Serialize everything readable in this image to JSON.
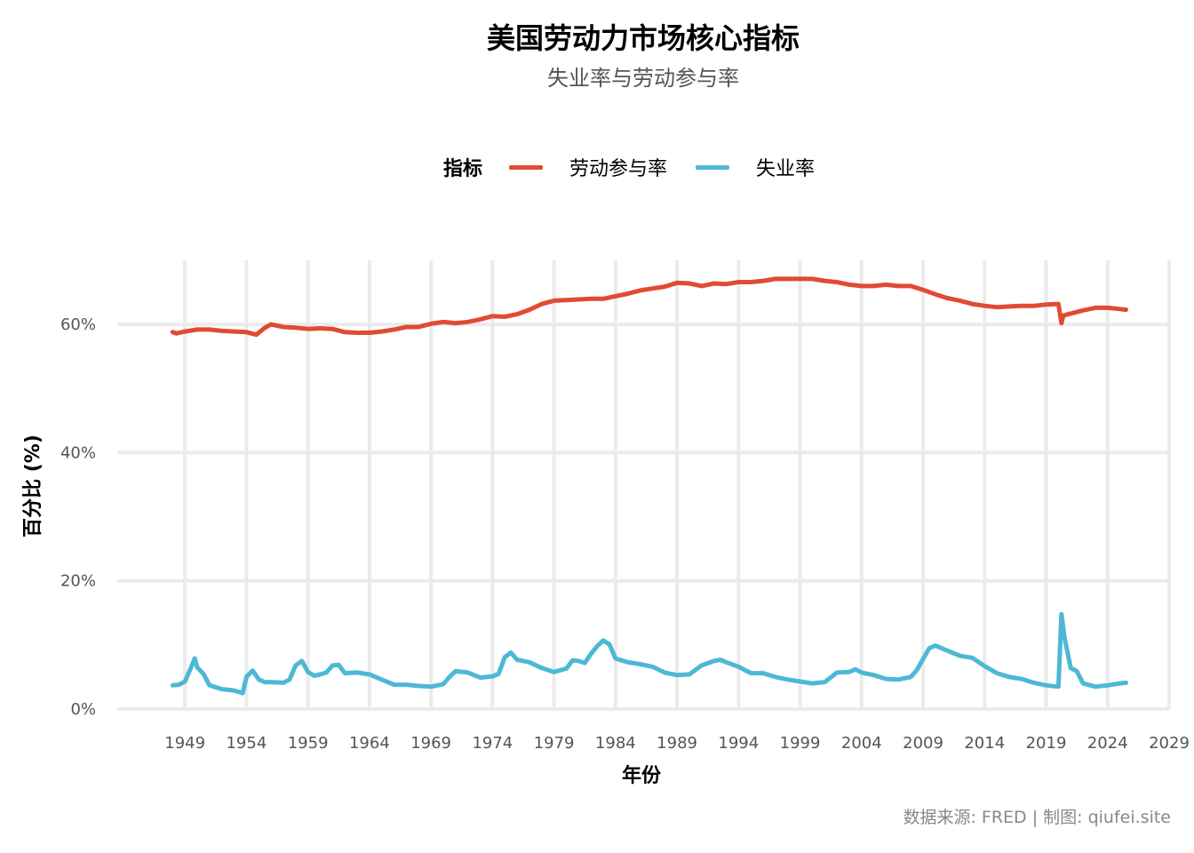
{
  "title": "美国劳动力市场核心指标",
  "subtitle": "失业率与劳动参与率",
  "caption": "数据来源: FRED | 制图: qiufei.site",
  "legend": {
    "title": "指标",
    "items": [
      {
        "label": "劳动参与率",
        "color": "#E24A33"
      },
      {
        "label": "失业率",
        "color": "#4DB8D5"
      }
    ]
  },
  "chart_data": {
    "type": "line",
    "title": "美国劳动力市场核心指标",
    "subtitle": "失业率与劳动参与率",
    "xlabel": "年份",
    "ylabel": "百分比 (%)",
    "xlim": [
      1943.5,
      2029
    ],
    "ylim": [
      0,
      70
    ],
    "x_ticks": [
      1949,
      1954,
      1959,
      1964,
      1969,
      1974,
      1979,
      1984,
      1989,
      1994,
      1999,
      2004,
      2009,
      2014,
      2019,
      2024,
      2029
    ],
    "x_tick_labels": [
      "1949",
      "1954",
      "1959",
      "1964",
      "1969",
      "1974",
      "1979",
      "1984",
      "1989",
      "1994",
      "1999",
      "2004",
      "2009",
      "2014",
      "2019",
      "2024",
      "2029"
    ],
    "y_ticks": [
      0,
      20,
      40,
      60
    ],
    "y_tick_labels": [
      "0%",
      "20%",
      "40%",
      "60%"
    ],
    "grid": true,
    "legend_position": "top",
    "series": [
      {
        "name": "劳动参与率",
        "color": "#E24A33",
        "x": [
          1948.0,
          1948.3,
          1949.0,
          1950.0,
          1951.0,
          1952.0,
          1953.0,
          1954.0,
          1954.8,
          1955.5,
          1956.0,
          1957.0,
          1958.0,
          1959.0,
          1960.0,
          1961.0,
          1962.0,
          1963.0,
          1964.0,
          1965.0,
          1966.0,
          1967.0,
          1968.0,
          1969.0,
          1970.0,
          1971.0,
          1972.0,
          1973.0,
          1974.0,
          1975.0,
          1976.0,
          1977.0,
          1978.0,
          1979.0,
          1980.0,
          1981.0,
          1982.0,
          1983.0,
          1984.0,
          1985.0,
          1986.0,
          1987.0,
          1988.0,
          1989.0,
          1990.0,
          1991.0,
          1992.0,
          1993.0,
          1994.0,
          1995.0,
          1996.0,
          1997.0,
          1998.0,
          1999.0,
          2000.0,
          2001.0,
          2002.0,
          2003.0,
          2004.0,
          2005.0,
          2006.0,
          2007.0,
          2008.0,
          2009.0,
          2010.0,
          2011.0,
          2012.0,
          2013.0,
          2014.0,
          2015.0,
          2016.0,
          2017.0,
          2018.0,
          2019.0,
          2020.0,
          2020.25,
          2020.4,
          2021.0,
          2022.0,
          2023.0,
          2024.0,
          2025.0,
          2025.5
        ],
        "y": [
          58.8,
          58.6,
          58.9,
          59.2,
          59.2,
          59.0,
          58.9,
          58.8,
          58.4,
          59.5,
          60.0,
          59.6,
          59.5,
          59.3,
          59.4,
          59.3,
          58.8,
          58.7,
          58.7,
          58.9,
          59.2,
          59.6,
          59.6,
          60.1,
          60.4,
          60.2,
          60.4,
          60.8,
          61.3,
          61.2,
          61.6,
          62.3,
          63.2,
          63.7,
          63.8,
          63.9,
          64.0,
          64.0,
          64.4,
          64.8,
          65.3,
          65.6,
          65.9,
          66.5,
          66.4,
          66.0,
          66.4,
          66.3,
          66.6,
          66.6,
          66.8,
          67.1,
          67.1,
          67.1,
          67.1,
          66.8,
          66.6,
          66.2,
          66.0,
          66.0,
          66.2,
          66.0,
          66.0,
          65.4,
          64.7,
          64.1,
          63.7,
          63.2,
          62.9,
          62.7,
          62.8,
          62.9,
          62.9,
          63.1,
          63.2,
          60.2,
          61.4,
          61.7,
          62.2,
          62.6,
          62.6,
          62.4,
          62.3
        ]
      },
      {
        "name": "失业率",
        "color": "#4DB8D5",
        "x": [
          1948.0,
          1948.5,
          1949.0,
          1949.5,
          1949.8,
          1950.0,
          1950.5,
          1951.0,
          1952.0,
          1953.0,
          1953.7,
          1954.0,
          1954.5,
          1955.0,
          1955.5,
          1956.0,
          1957.0,
          1957.5,
          1958.0,
          1958.5,
          1959.0,
          1959.5,
          1960.0,
          1960.5,
          1961.0,
          1961.5,
          1962.0,
          1963.0,
          1964.0,
          1965.0,
          1966.0,
          1967.0,
          1968.0,
          1969.0,
          1970.0,
          1970.5,
          1971.0,
          1972.0,
          1973.0,
          1974.0,
          1974.5,
          1975.0,
          1975.5,
          1976.0,
          1977.0,
          1978.0,
          1979.0,
          1980.0,
          1980.5,
          1981.0,
          1981.5,
          1982.0,
          1982.5,
          1983.0,
          1983.5,
          1984.0,
          1985.0,
          1986.0,
          1987.0,
          1988.0,
          1989.0,
          1990.0,
          1991.0,
          1992.0,
          1992.5,
          1993.0,
          1994.0,
          1995.0,
          1996.0,
          1997.0,
          1998.0,
          1999.0,
          2000.0,
          2001.0,
          2002.0,
          2003.0,
          2003.5,
          2004.0,
          2005.0,
          2006.0,
          2007.0,
          2008.0,
          2008.5,
          2009.0,
          2009.5,
          2010.0,
          2011.0,
          2012.0,
          2013.0,
          2014.0,
          2015.0,
          2016.0,
          2017.0,
          2018.0,
          2019.0,
          2020.0,
          2020.25,
          2020.5,
          2021.0,
          2021.5,
          2022.0,
          2023.0,
          2024.0,
          2025.0,
          2025.5
        ],
        "y": [
          3.7,
          3.8,
          4.3,
          6.5,
          7.9,
          6.5,
          5.5,
          3.7,
          3.1,
          2.9,
          2.5,
          5.0,
          6.0,
          4.6,
          4.2,
          4.2,
          4.1,
          4.6,
          6.8,
          7.5,
          5.8,
          5.2,
          5.4,
          5.7,
          6.8,
          6.9,
          5.6,
          5.7,
          5.4,
          4.6,
          3.8,
          3.8,
          3.6,
          3.5,
          3.9,
          5.0,
          5.9,
          5.7,
          4.9,
          5.1,
          5.5,
          8.1,
          8.8,
          7.7,
          7.3,
          6.4,
          5.8,
          6.3,
          7.6,
          7.5,
          7.2,
          8.6,
          9.8,
          10.7,
          10.1,
          7.9,
          7.3,
          7.0,
          6.6,
          5.7,
          5.3,
          5.4,
          6.8,
          7.5,
          7.7,
          7.3,
          6.6,
          5.6,
          5.6,
          5.0,
          4.6,
          4.3,
          4.0,
          4.2,
          5.7,
          5.8,
          6.2,
          5.7,
          5.3,
          4.7,
          4.6,
          5.0,
          6.1,
          7.8,
          9.5,
          9.9,
          9.1,
          8.3,
          8.0,
          6.7,
          5.6,
          5.0,
          4.7,
          4.1,
          3.7,
          3.5,
          14.8,
          11.1,
          6.4,
          5.9,
          4.0,
          3.5,
          3.7,
          4.0,
          4.1
        ]
      }
    ]
  }
}
